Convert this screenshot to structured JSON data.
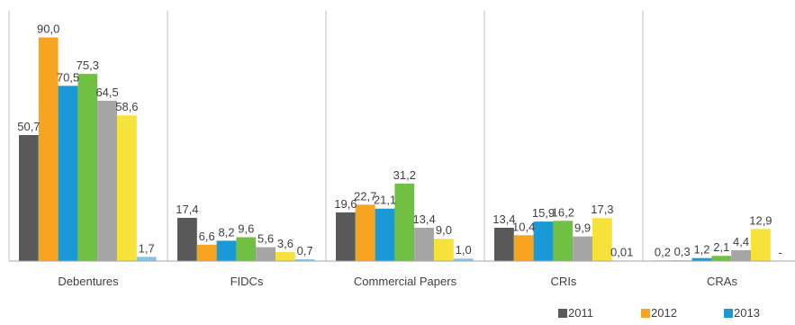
{
  "chart_data": {
    "type": "bar",
    "categories": [
      "Debentures",
      "FIDCs",
      "Commercial Papers",
      "CRIs",
      "CRAs"
    ],
    "ylim": [
      0,
      92
    ],
    "grid": false,
    "legend_position": "bottom-right",
    "series": [
      {
        "name": "2011",
        "color": "#595959",
        "values": [
          50.7,
          17.4,
          19.6,
          13.4,
          0.2
        ],
        "labels": [
          "50,7",
          "17,4",
          "19,6",
          "13,4",
          "0,2"
        ]
      },
      {
        "name": "2012",
        "color": "#F7A521",
        "values": [
          90.0,
          6.6,
          22.7,
          10.4,
          0.3
        ],
        "labels": [
          "90,0",
          "6,6",
          "22,7",
          "10,4",
          "0,3"
        ]
      },
      {
        "name": "2013",
        "color": "#1B98D6",
        "values": [
          70.5,
          8.2,
          21.1,
          15.9,
          1.2
        ],
        "labels": [
          "70,5",
          "8,2",
          "21,1",
          "15,9",
          "1,2"
        ]
      },
      {
        "name": "",
        "color": "#72C043",
        "values": [
          75.3,
          9.6,
          31.2,
          16.2,
          2.1
        ],
        "labels": [
          "75,3",
          "9,6",
          "31,2",
          "16,2",
          "2,1"
        ]
      },
      {
        "name": "",
        "color": "#A6A6A6",
        "values": [
          64.5,
          5.6,
          13.4,
          9.9,
          4.4
        ],
        "labels": [
          "64,5",
          "5,6",
          "13,4",
          "9,9",
          "4,4"
        ]
      },
      {
        "name": "",
        "color": "#F5E23A",
        "values": [
          58.6,
          3.6,
          9.0,
          17.3,
          12.9
        ],
        "labels": [
          "58,6",
          "3,6",
          "9,0",
          "17,3",
          "12,9"
        ]
      },
      {
        "name": "",
        "color": "#7FC6E8",
        "values": [
          1.7,
          0.7,
          1.0,
          0.01,
          null
        ],
        "labels": [
          "1,7",
          "0,7",
          "1,0",
          "0,01",
          "-"
        ]
      }
    ]
  }
}
